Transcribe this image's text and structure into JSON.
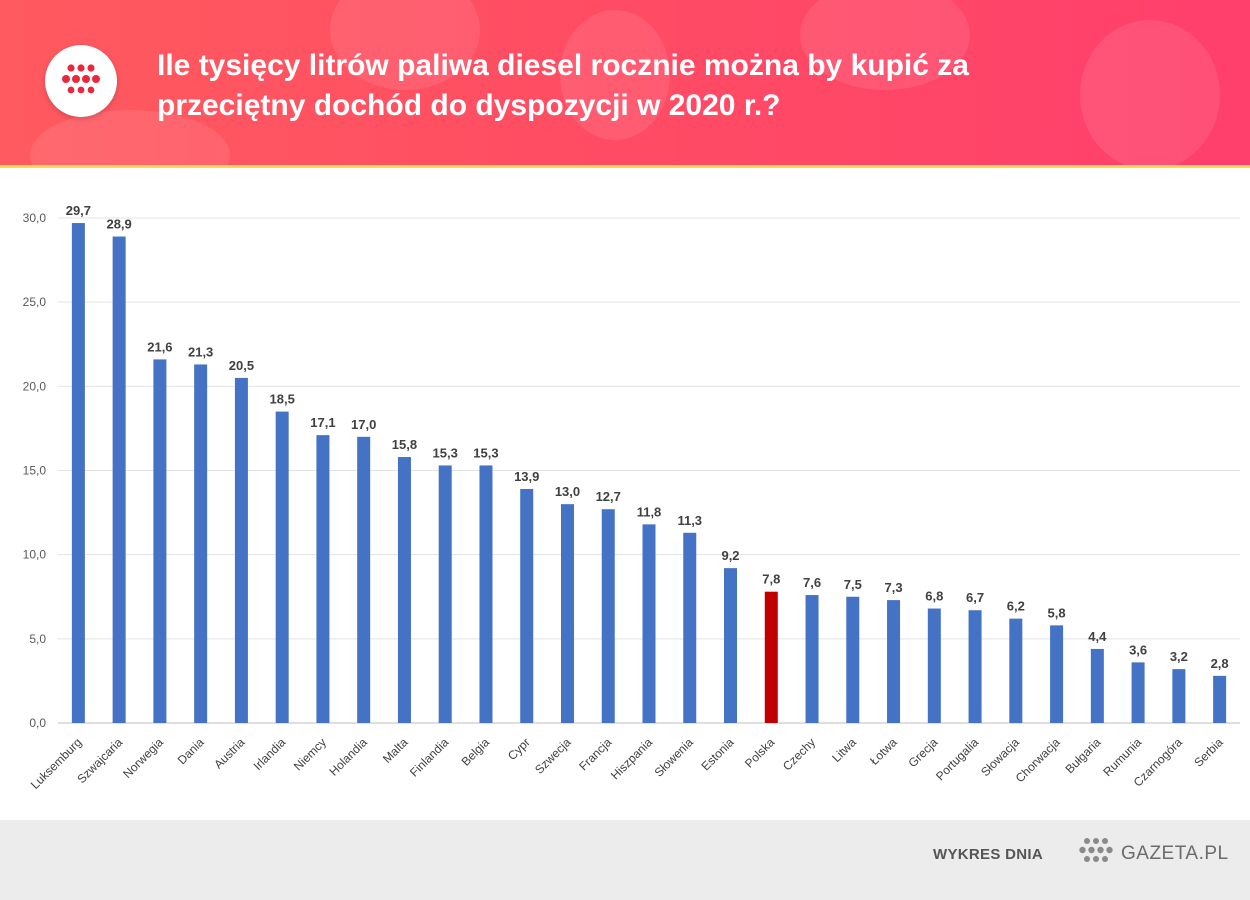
{
  "header": {
    "title_line1": "Ile tysięcy litrów paliwa diesel rocznie można by kupić za",
    "title_line2": "przeciętny dochód do dyspozycji w 2020 r.?"
  },
  "footer": {
    "label": "WYKRES DNIA",
    "brand": "GAZETA.PL"
  },
  "colors": {
    "bar": "#4472c4",
    "highlight_bar": "#c00000",
    "header_bg": "#ff4d63",
    "accent_strip": "#ffd84d",
    "logo_dots": "#e8283c"
  },
  "chart_data": {
    "type": "bar",
    "categories": [
      "Luksemburg",
      "Szwajcaria",
      "Norwegia",
      "Dania",
      "Austria",
      "Irlandia",
      "Niemcy",
      "Holandia",
      "Malta",
      "Finlandia",
      "Belgia",
      "Cypr",
      "Szwecja",
      "Francja",
      "Hiszpania",
      "Słowenia",
      "Estonia",
      "Polska",
      "Czechy",
      "Litwa",
      "Łotwa",
      "Grecja",
      "Portugalia",
      "Słowacja",
      "Chorwacja",
      "Bułgaria",
      "Rumunia",
      "Czarnogóra",
      "Serbia"
    ],
    "values": [
      29.7,
      28.9,
      21.6,
      21.3,
      20.5,
      18.5,
      17.1,
      17.0,
      15.8,
      15.3,
      15.3,
      13.9,
      13.0,
      12.7,
      11.8,
      11.3,
      9.2,
      7.8,
      7.6,
      7.5,
      7.3,
      6.8,
      6.7,
      6.2,
      5.8,
      4.4,
      3.6,
      3.2,
      2.8
    ],
    "value_labels": [
      "29,7",
      "28,9",
      "21,6",
      "21,3",
      "20,5",
      "18,5",
      "17,1",
      "17,0",
      "15,8",
      "15,3",
      "15,3",
      "13,9",
      "13,0",
      "12,7",
      "11,8",
      "11,3",
      "9,2",
      "7,8",
      "7,6",
      "7,5",
      "7,3",
      "6,8",
      "6,7",
      "6,2",
      "5,8",
      "4,4",
      "3,6",
      "3,2",
      "2,8"
    ],
    "highlight": "Polska",
    "yticks": [
      0,
      5,
      10,
      15,
      20,
      25,
      30
    ],
    "ytick_labels": [
      "0,0",
      "5,0",
      "10,0",
      "15,0",
      "20,0",
      "25,0",
      "30,0"
    ],
    "ylim": [
      0,
      30
    ],
    "grid": true,
    "legend": "none"
  }
}
